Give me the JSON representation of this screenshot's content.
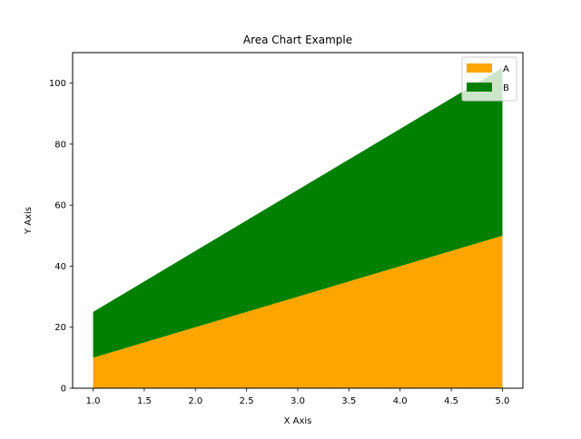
{
  "chart_data": {
    "type": "area",
    "stacked": true,
    "title": "Area Chart Example",
    "xlabel": "X Axis",
    "ylabel": "Y Axis",
    "x": [
      1,
      2,
      3,
      4,
      5
    ],
    "series": [
      {
        "name": "A",
        "values": [
          10,
          20,
          30,
          40,
          50
        ],
        "color": "#FFA500"
      },
      {
        "name": "B",
        "values": [
          15,
          25,
          35,
          45,
          55
        ],
        "color": "#008000"
      }
    ],
    "xlim": [
      0.8,
      5.2
    ],
    "ylim": [
      0,
      110
    ],
    "xticks": [
      "1.0",
      "1.5",
      "2.0",
      "2.5",
      "3.0",
      "3.5",
      "4.0",
      "4.5",
      "5.0"
    ],
    "yticks": [
      "0",
      "20",
      "40",
      "60",
      "80",
      "100"
    ],
    "grid": false,
    "legend_position": "top-right"
  }
}
